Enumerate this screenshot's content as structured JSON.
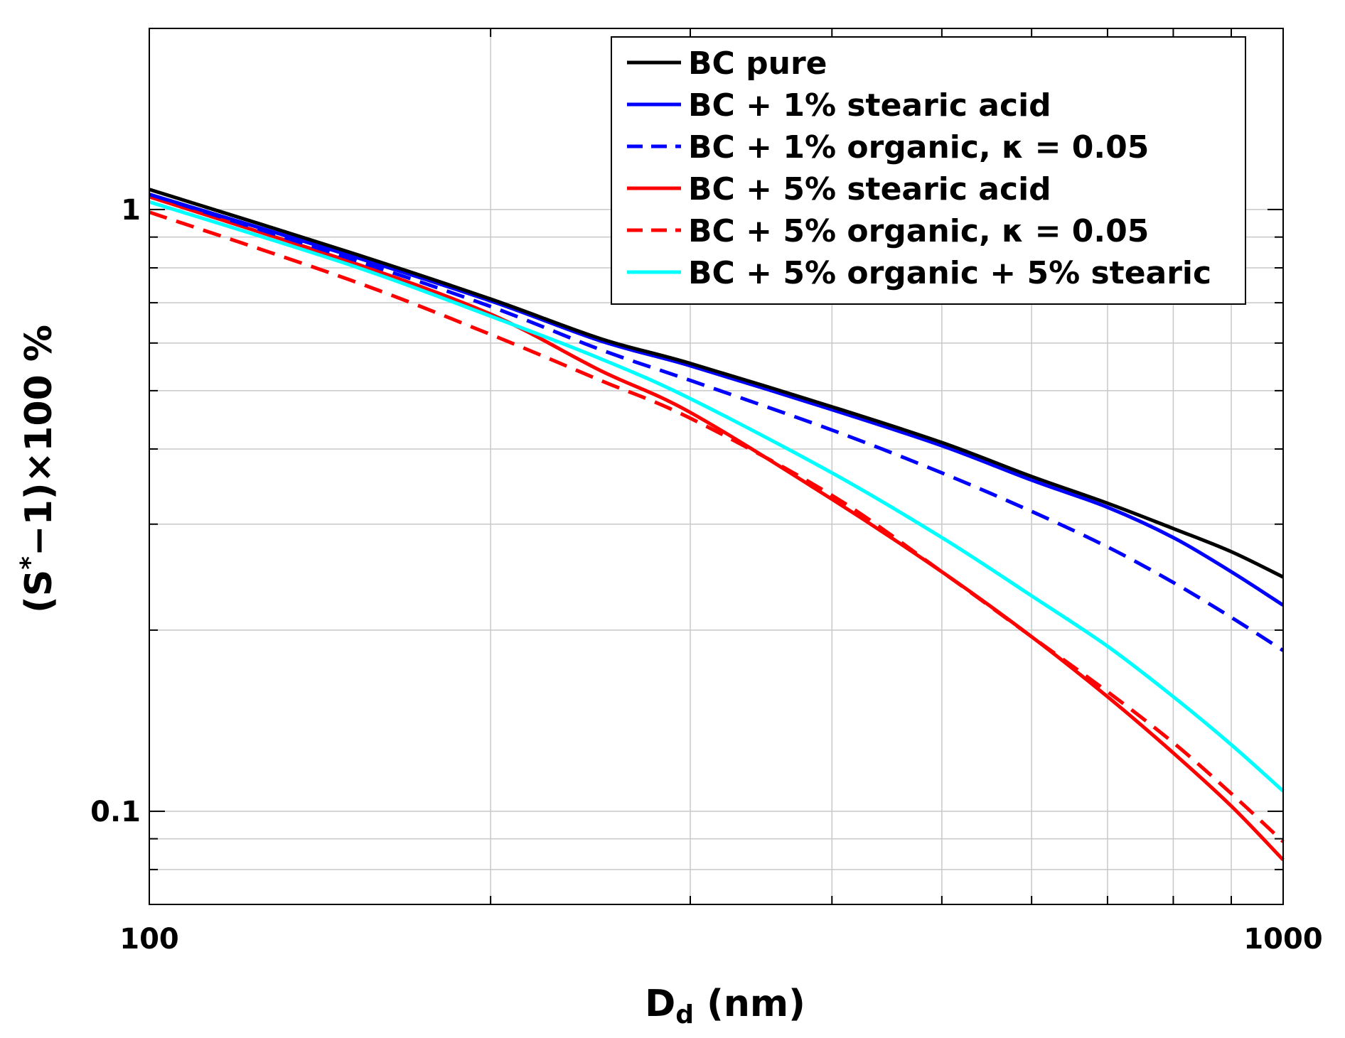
{
  "chart_data": {
    "type": "line",
    "xlabel": "D",
    "xlabel_sub": "d",
    "xlabel_unit": " (nm)",
    "ylabel": "(S*−1)×100 %",
    "ylabel_parts": [
      "(S",
      "*",
      "−1)×100 %"
    ],
    "xscale": "log",
    "yscale": "log",
    "xlim": [
      100,
      1000
    ],
    "ylim": [
      0.07,
      2.0
    ],
    "x_ticks": [
      {
        "value": 100,
        "label": "100"
      },
      {
        "value": 1000,
        "label": "1000"
      }
    ],
    "y_ticks": [
      {
        "value": 0.1,
        "label": "0.1"
      },
      {
        "value": 1,
        "label": "1"
      }
    ],
    "grid": true,
    "legend_position": "top-right",
    "series": [
      {
        "name": "BC pure",
        "color": "#000000",
        "dash": "solid",
        "x": [
          100,
          150,
          200,
          250,
          300,
          400,
          500,
          600,
          700,
          800,
          900,
          1000
        ],
        "y": [
          1.08,
          0.85,
          0.71,
          0.61,
          0.555,
          0.47,
          0.41,
          0.36,
          0.325,
          0.295,
          0.27,
          0.245
        ]
      },
      {
        "name": "BC + 1% stearic acid",
        "color": "#0000ff",
        "dash": "solid",
        "x": [
          100,
          150,
          200,
          250,
          300,
          400,
          500,
          600,
          700,
          800,
          900,
          1000
        ],
        "y": [
          1.06,
          0.84,
          0.705,
          0.605,
          0.55,
          0.465,
          0.405,
          0.355,
          0.32,
          0.285,
          0.25,
          0.22
        ]
      },
      {
        "name": "BC + 1% organic, κ = 0.05",
        "color": "#0000ff",
        "dash": "dashed",
        "x": [
          100,
          150,
          200,
          250,
          300,
          400,
          500,
          600,
          700,
          800,
          900,
          1000
        ],
        "y": [
          1.06,
          0.83,
          0.69,
          0.585,
          0.52,
          0.43,
          0.365,
          0.315,
          0.275,
          0.24,
          0.21,
          0.185
        ]
      },
      {
        "name": "BC + 5% stearic acid",
        "color": "#ff0000",
        "dash": "solid",
        "x": [
          100,
          150,
          200,
          250,
          300,
          400,
          500,
          600,
          700,
          800,
          900,
          1000
        ],
        "y": [
          1.05,
          0.82,
          0.67,
          0.54,
          0.46,
          0.33,
          0.25,
          0.195,
          0.155,
          0.125,
          0.102,
          0.083
        ]
      },
      {
        "name": "BC + 5% organic, κ = 0.05",
        "color": "#ff0000",
        "dash": "dashed",
        "x": [
          100,
          150,
          200,
          250,
          300,
          400,
          500,
          600,
          700,
          800,
          900,
          1000
        ],
        "y": [
          0.99,
          0.765,
          0.62,
          0.52,
          0.45,
          0.335,
          0.25,
          0.195,
          0.158,
          0.13,
          0.107,
          0.089
        ]
      },
      {
        "name": "BC + 5% organic + 5% stearic",
        "color": "#00ffff",
        "dash": "solid",
        "x": [
          100,
          150,
          200,
          250,
          300,
          400,
          500,
          600,
          700,
          800,
          900,
          1000
        ],
        "y": [
          1.03,
          0.81,
          0.665,
          0.565,
          0.485,
          0.365,
          0.285,
          0.228,
          0.188,
          0.155,
          0.129,
          0.108
        ]
      }
    ]
  }
}
